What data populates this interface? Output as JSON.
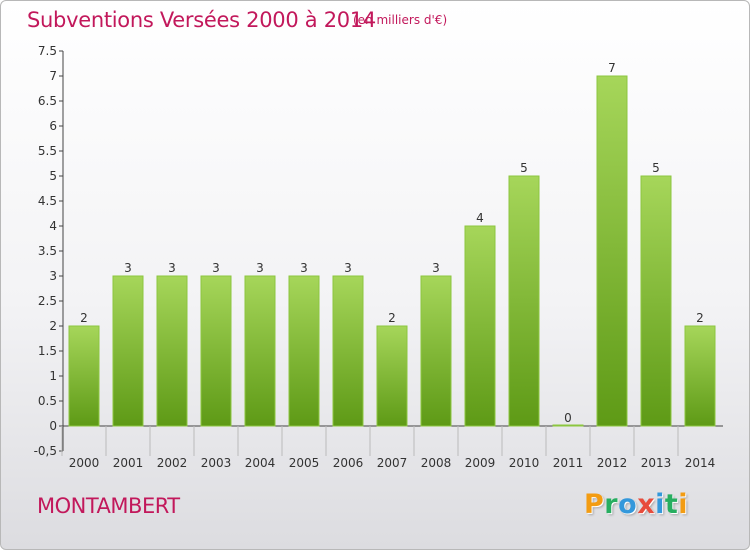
{
  "header": {
    "title": "Subventions Versées 2000 à 2014",
    "subtitle": "(en milliers d'€)"
  },
  "footer": {
    "commune": "MONTAMBERT",
    "logo_letters": [
      "P",
      "r",
      "o",
      "x",
      "i",
      "t",
      "i"
    ]
  },
  "colors": {
    "title": "#c2185b",
    "bar_top": "#a6d65a",
    "bar_bottom": "#5e9a16",
    "logo": [
      "#f39c12",
      "#27ae60",
      "#3498db",
      "#e74c3c",
      "#3498db",
      "#27ae60",
      "#f39c12"
    ]
  },
  "chart_data": {
    "type": "bar",
    "title": "Subventions Versées 2000 à 2014",
    "subtitle": "(en milliers d'€)",
    "categories": [
      "2000",
      "2001",
      "2002",
      "2003",
      "2004",
      "2005",
      "2006",
      "2007",
      "2008",
      "2009",
      "2010",
      "2011",
      "2012",
      "2013",
      "2014"
    ],
    "values": [
      2,
      3,
      3,
      3,
      3,
      3,
      3,
      2,
      3,
      4,
      5,
      0,
      7,
      5,
      2
    ],
    "data_labels": [
      "2",
      "3",
      "3",
      "3",
      "3",
      "3",
      "3",
      "2",
      "3",
      "4",
      "5",
      "0",
      "7",
      "5",
      "2"
    ],
    "ylim": [
      -0.5,
      7.5
    ],
    "yticks": [
      "-0,5",
      "0",
      "0.5",
      "1",
      "1.5",
      "2",
      "2.5",
      "3",
      "3.5",
      "4",
      "4.5",
      "5",
      "5.5",
      "6",
      "6.5",
      "7",
      "7.5"
    ],
    "ytick_values": [
      -0.5,
      0,
      0.5,
      1,
      1.5,
      2,
      2.5,
      3,
      3.5,
      4,
      4.5,
      5,
      5.5,
      6,
      6.5,
      7,
      7.5
    ],
    "grid": false
  }
}
